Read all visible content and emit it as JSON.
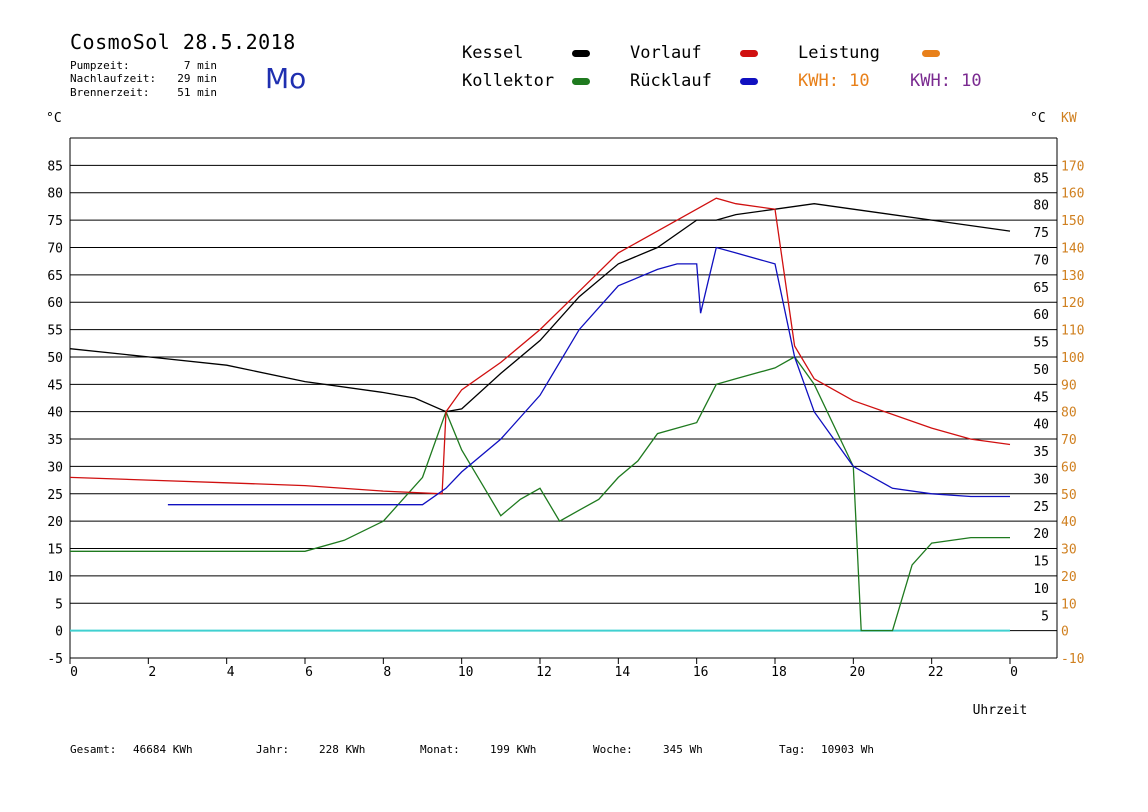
{
  "header": {
    "title": "CosmoSol 28.5.2018",
    "day": "Mo",
    "pump_label": "Pumpzeit:",
    "pump_value": "7 min",
    "nach_label": "Nachlaufzeit:",
    "nach_value": "29 min",
    "brenner_label": "Brennerzeit:",
    "brenner_value": "51 min"
  },
  "legend": {
    "kessel": "Kessel",
    "kollektor": "Kollektor",
    "vorlauf": "Vorlauf",
    "ruecklauf": "Rücklauf",
    "leistung": "Leistung",
    "kwh_a": "KWH: 10",
    "kwh_b": "KWH: 10"
  },
  "colors": {
    "kessel": "#000000",
    "kollektor": "#1f7a1f",
    "vorlauf": "#d01010",
    "ruecklauf": "#1010c0",
    "leistung": "#e8801a",
    "kwh_b": "#7a2a90",
    "baseline": "#40d0d0",
    "right_axis": "#d08020"
  },
  "footer": {
    "gesamt_label": "Gesamt:",
    "gesamt_value": "46684 KWh",
    "jahr_label": "Jahr:",
    "jahr_value": "228 KWh",
    "monat_label": "Monat:",
    "monat_value": "199 KWh",
    "woche_label": "Woche:",
    "woche_value": "345 Wh",
    "tag_label": "Tag:",
    "tag_value": "10903 Wh"
  },
  "chart_data": {
    "type": "line",
    "xlabel": "Uhrzeit",
    "ylabel_left": "°C",
    "ylabel_right_temp": "°C",
    "ylabel_right_power": "KW",
    "xlim": [
      0,
      24
    ],
    "ylim": [
      -5,
      90
    ],
    "x_ticks": [
      "0",
      "2",
      "4",
      "6",
      "8",
      "10",
      "12",
      "14",
      "16",
      "18",
      "20",
      "22",
      "0"
    ],
    "y_ticks_left": [
      "-5",
      "0",
      "5",
      "10",
      "15",
      "20",
      "25",
      "30",
      "35",
      "40",
      "45",
      "50",
      "55",
      "60",
      "65",
      "70",
      "75",
      "80",
      "85"
    ],
    "y_ticks_right_temp": [
      "5",
      "10",
      "15",
      "20",
      "25",
      "30",
      "35",
      "40",
      "45",
      "50",
      "55",
      "60",
      "65",
      "70",
      "75",
      "80",
      "85"
    ],
    "y_ticks_right_power": [
      "-10",
      "0",
      "10",
      "20",
      "30",
      "40",
      "50",
      "60",
      "70",
      "80",
      "90",
      "100",
      "110",
      "120",
      "130",
      "140",
      "150",
      "160",
      "170"
    ],
    "grid": true,
    "series": [
      {
        "name": "Kessel",
        "x": [
          0,
          2,
          4,
          6,
          8,
          8.8,
          9.6,
          10,
          11,
          12,
          13,
          14,
          15,
          16,
          16.5,
          17,
          18,
          19,
          20,
          22,
          24
        ],
        "y": [
          51.5,
          50,
          48.5,
          45.5,
          43.5,
          42.5,
          40,
          40.5,
          47,
          53,
          61,
          67,
          70,
          75,
          75,
          76,
          77,
          78,
          77,
          75,
          73
        ]
      },
      {
        "name": "Kollektor",
        "x": [
          0,
          2,
          4,
          6,
          7,
          8,
          9,
          9.6,
          10,
          10.5,
          11,
          11.5,
          12,
          12.5,
          13,
          13.5,
          14,
          14.5,
          15,
          16,
          16.5,
          17,
          18,
          18.5,
          19,
          20,
          20.2,
          21,
          21.5,
          22,
          23,
          24
        ],
        "y": [
          14.5,
          14.5,
          14.5,
          14.5,
          16.5,
          20,
          28,
          40,
          33,
          27,
          21,
          24,
          26,
          20,
          22,
          24,
          28,
          31,
          36,
          38,
          45,
          46,
          48,
          50,
          45,
          30,
          0,
          0,
          12,
          16,
          17,
          17
        ]
      },
      {
        "name": "Vorlauf",
        "x": [
          0,
          2,
          4,
          6,
          8,
          9.5,
          9.6,
          10,
          11,
          12,
          13,
          14,
          15,
          16,
          16.5,
          17,
          18,
          18.5,
          19,
          20,
          22,
          23,
          24
        ],
        "y": [
          28,
          27.5,
          27,
          26.5,
          25.5,
          25,
          40,
          44,
          49,
          55,
          62,
          69,
          73,
          77,
          79,
          78,
          77,
          52,
          46,
          42,
          37,
          35,
          34
        ]
      },
      {
        "name": "Rücklauf",
        "x": [
          2.5,
          4,
          6,
          8,
          9,
          9.6,
          10,
          11,
          12,
          13,
          14,
          15,
          15.5,
          16,
          16.1,
          16.3,
          16.5,
          17,
          18,
          18.5,
          19,
          20,
          21,
          22,
          23,
          24
        ],
        "y": [
          23,
          23,
          23,
          23,
          23,
          26,
          29,
          35,
          43,
          55,
          63,
          66,
          67,
          67,
          58,
          64,
          70,
          69,
          67,
          50,
          40,
          30,
          26,
          25,
          24.5,
          24.5
        ]
      }
    ]
  }
}
